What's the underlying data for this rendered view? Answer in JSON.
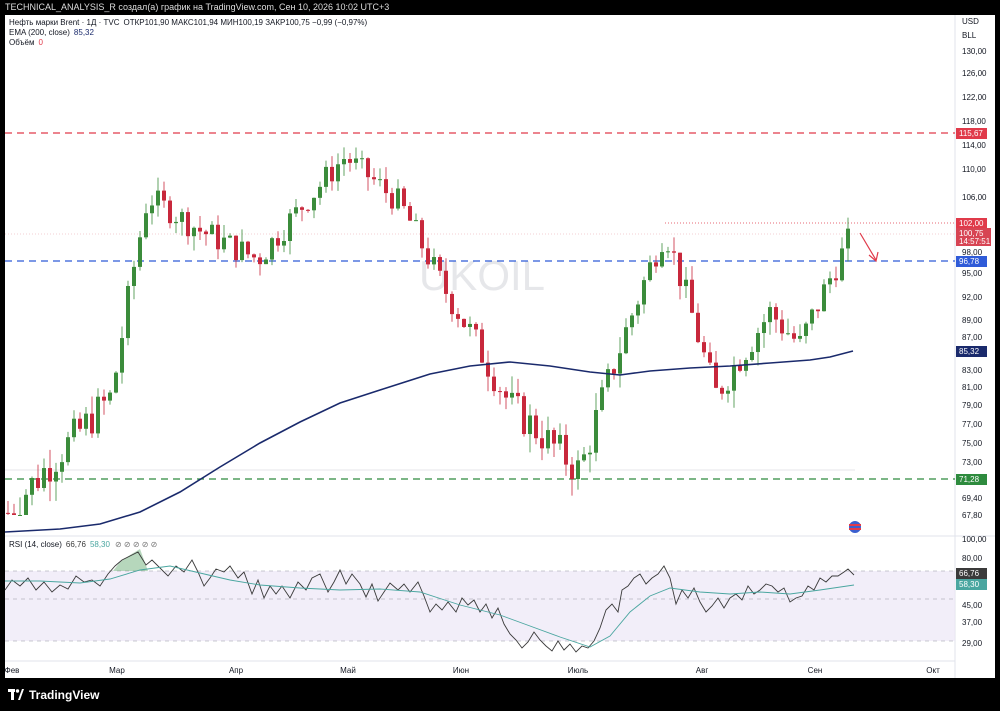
{
  "header": {
    "caption": "TECHNICAL_ANALYSIS_R создал(а) график на TradingView.com, Сен 10, 2026 10:02 UTC+3"
  },
  "legend": {
    "symbol": "Нефть марки Brent · 1Д · TVC",
    "ohlc": "ОТКР101,90 МАКС101,94 МИН100,19 ЗАКР100,75 −0,99 (−0,97%)",
    "ema_label": "EMA (200, close)",
    "ema_value": "85,32",
    "volume_label": "Объём",
    "volume_value": "0",
    "rsi_label": "RSI (14, close)",
    "rsi_value": "66,76",
    "rsi_ma_value": "58,30",
    "rsi_icons": "⊘ ⊘ ⊘ ⊘ ⊘"
  },
  "watermark": "UKOIL",
  "currency": "USD",
  "unit": "BLL",
  "price_axis": [
    "130,00",
    "126,00",
    "122,00",
    "118,00",
    "114,00",
    "110,00",
    "106,00",
    "102,00",
    "98,00",
    "95,00",
    "92,00",
    "89,00",
    "87,00",
    "83,00",
    "81,00",
    "79,00",
    "77,00",
    "75,00",
    "73,00",
    "69,40",
    "67,80"
  ],
  "price_tags": {
    "resistance": "115,67",
    "last_high": "102,00",
    "last_close": "100,75",
    "countdown": "14:57:51",
    "support_mid": "96,78",
    "ema": "85,32",
    "support_low": "71,28"
  },
  "rsi_axis": [
    "100,00",
    "80,00",
    "45,00",
    "37,00",
    "29,00"
  ],
  "rsi_tags": {
    "rsi": "66,76",
    "ma": "58,30"
  },
  "time_axis": [
    "Фев",
    "Мар",
    "Апр",
    "Май",
    "Июн",
    "Июль",
    "Авг",
    "Сен",
    "Окт"
  ],
  "footer": {
    "brand": "TradingView"
  },
  "colors": {
    "up": "#26a69a",
    "up_body": "#3b8c3b",
    "down": "#c8283c",
    "ema": "#1a2a6c",
    "resistance": "#e03a4a",
    "support_mid": "#2f5bd8",
    "support_low": "#2e8b3e",
    "rsi": "#3a3a3a",
    "rsi_ma": "#4aa6a0",
    "rsi_band": "#ede7f6"
  },
  "chart_data": {
    "type": "candlestick",
    "title": "Нефть марки Brent · 1Д · TVC",
    "xlabel": "",
    "ylabel": "",
    "x_categories": [
      "Фев",
      "Мар",
      "Апр",
      "Май",
      "Июн",
      "Июль",
      "Авг",
      "Сен",
      "Окт"
    ],
    "ylim": [
      66,
      132
    ],
    "horizontal_levels": [
      115.67,
      96.78,
      71.28
    ],
    "last_bar": {
      "open": 101.9,
      "high": 101.94,
      "low": 100.19,
      "close": 100.75
    },
    "close_path": [
      {
        "month": "Фев",
        "close": 68.0
      },
      {
        "month": "Мар",
        "close": 80.0
      },
      {
        "month": "Мар",
        "close": 106.0
      },
      {
        "month": "Апр",
        "close": 101.0
      },
      {
        "month": "Апр",
        "close": 97.0
      },
      {
        "month": "Май",
        "close": 112.0
      },
      {
        "month": "Май",
        "close": 105.0
      },
      {
        "month": "Июн",
        "close": 94.0
      },
      {
        "month": "Июн",
        "close": 79.0
      },
      {
        "month": "Июль",
        "close": 72.0
      },
      {
        "month": "Июль",
        "close": 101.0
      },
      {
        "month": "Авг",
        "close": 80.0
      },
      {
        "month": "Авг",
        "close": 90.0
      },
      {
        "month": "Сен",
        "close": 86.0
      },
      {
        "month": "Сен",
        "close": 100.75
      }
    ],
    "ema200_end": 85.32,
    "rsi": {
      "value": 66.76,
      "ma": 58.3,
      "ylim": [
        20,
        100
      ]
    }
  }
}
